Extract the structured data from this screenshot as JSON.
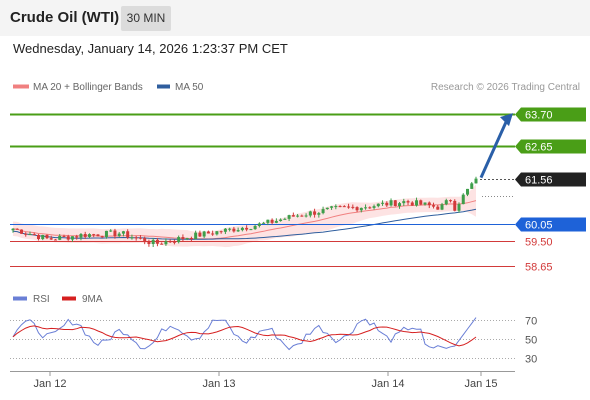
{
  "header": {
    "title": "Crude Oil (WTI)",
    "timeframe": "30 MIN",
    "timestamp": "Wednesday, January 14, 2026 1:23:37 PM CET"
  },
  "legend": {
    "items": [
      {
        "label": "MA 20 + Bollinger Bands",
        "color": "#f08080"
      },
      {
        "label": "MA 50",
        "color": "#2f5e9e"
      }
    ],
    "copyright": "Research © 2026 Trading Central"
  },
  "price_panel": {
    "y_range": [
      58.0,
      64.3
    ],
    "x_dates": [
      "Jan 12",
      "Jan 13",
      "Jan 14",
      "Jan 15"
    ],
    "levels": [
      {
        "label": "63.70",
        "value": 63.7,
        "type": "resistance",
        "color": "#4a9e17"
      },
      {
        "label": "62.65",
        "value": 62.65,
        "type": "resistance",
        "color": "#4a9e17"
      },
      {
        "label": "61.56",
        "value": 61.56,
        "type": "last",
        "color": "#222222"
      },
      {
        "label": "60.05",
        "value": 60.05,
        "type": "pivot",
        "color": "#1e62d8"
      },
      {
        "label": "59.50",
        "value": 59.5,
        "type": "support",
        "color": "#d23a3a"
      },
      {
        "label": "58.65",
        "value": 58.65,
        "type": "support",
        "color": "#d23a3a"
      }
    ],
    "colors": {
      "up": "#3e9e4b",
      "down": "#d23a3a",
      "band": "#fde3e3",
      "ma20": "#f08080",
      "ma50": "#2f5e9e",
      "arrow": "#2a5fa8"
    }
  },
  "rsi_panel": {
    "legend": [
      {
        "label": "RSI",
        "color": "#6a7fd6"
      },
      {
        "label": "9MA",
        "color": "#d62020"
      }
    ],
    "levels": [
      "70",
      "50",
      "30"
    ]
  },
  "chart_data": {
    "type": "candlestick",
    "series": [
      {
        "name": "MA 20 + Bollinger Bands"
      },
      {
        "name": "MA 50"
      },
      {
        "name": "RSI"
      },
      {
        "name": "9MA"
      }
    ],
    "close_path": [
      {
        "x": "Jan 12",
        "y": 59.9
      },
      {
        "x": "Jan 12",
        "y": 59.55
      },
      {
        "x": "Jan 12",
        "y": 59.7
      },
      {
        "x": "Jan 12",
        "y": 59.75
      },
      {
        "x": "Jan 12",
        "y": 59.4
      },
      {
        "x": "Jan 13",
        "y": 59.65
      },
      {
        "x": "Jan 13",
        "y": 59.85
      },
      {
        "x": "Jan 13",
        "y": 60.05
      },
      {
        "x": "Jan 13",
        "y": 60.35
      },
      {
        "x": "Jan 13",
        "y": 60.55
      },
      {
        "x": "Jan 14",
        "y": 60.65
      },
      {
        "x": "Jan 14",
        "y": 60.8
      },
      {
        "x": "Jan 14",
        "y": 60.6
      },
      {
        "x": "Jan 14",
        "y": 61.56
      }
    ],
    "rsi_ylim": [
      20,
      80
    ]
  }
}
